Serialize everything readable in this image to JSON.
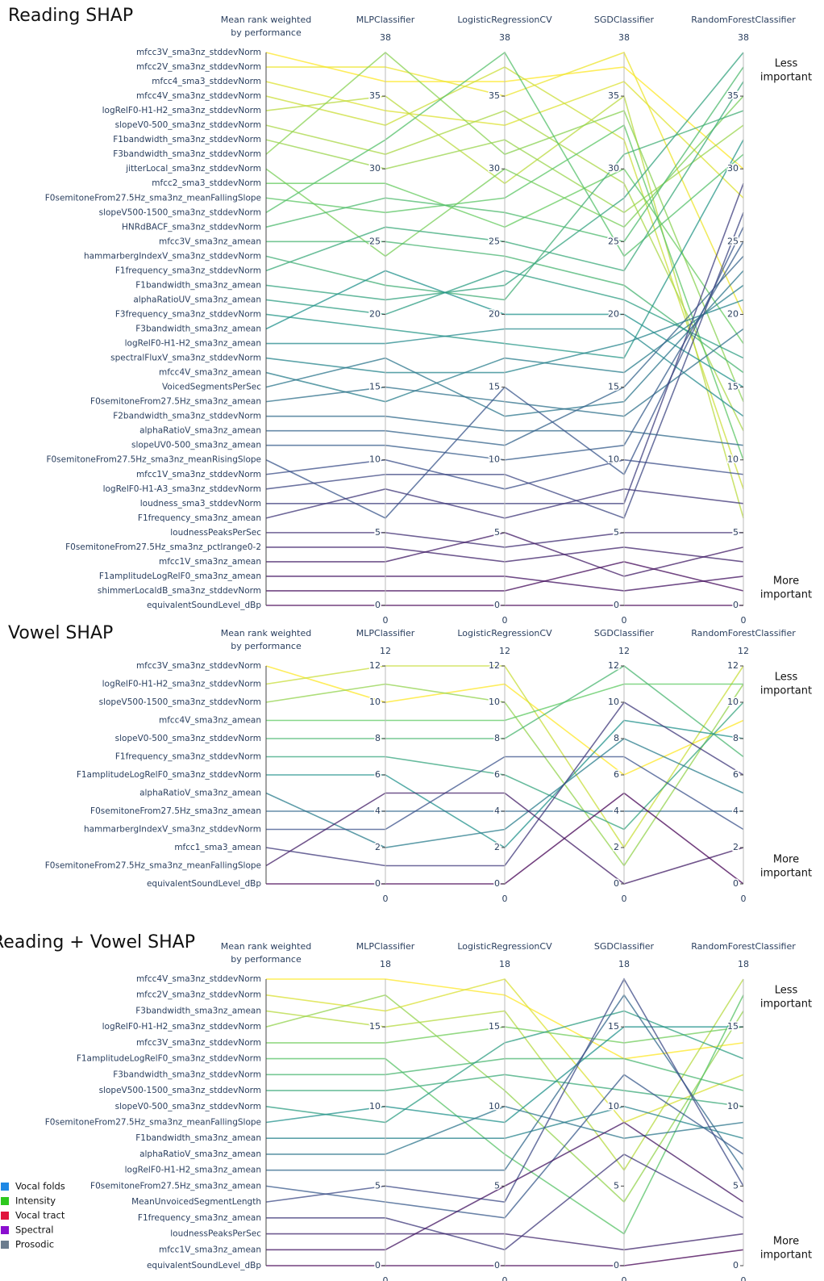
{
  "chart_data": [
    {
      "type": "parallel",
      "title": "Reading SHAP",
      "axis_title": [
        "Mean rank weighted",
        "by performance"
      ],
      "ylim": [
        0,
        38
      ],
      "yticks": [
        0,
        5,
        10,
        15,
        20,
        25,
        30,
        35
      ],
      "annotations": {
        "top": [
          "Less",
          "important"
        ],
        "bottom": [
          "More",
          "important"
        ]
      },
      "features": [
        "mfcc3V_sma3nz_stddevNorm",
        "mfcc2V_sma3nz_stddevNorm",
        "mfcc4_sma3_stddevNorm",
        "mfcc4V_sma3nz_stddevNorm",
        "logRelF0-H1-H2_sma3nz_stddevNorm",
        "slopeV0-500_sma3nz_stddevNorm",
        "F1bandwidth_sma3nz_stddevNorm",
        "F3bandwidth_sma3nz_stddevNorm",
        "jitterLocal_sma3nz_stddevNorm",
        "mfcc2_sma3_stddevNorm",
        "F0semitoneFrom27.5Hz_sma3nz_meanFallingSlope",
        "slopeV500-1500_sma3nz_stddevNorm",
        "HNRdBACF_sma3nz_stddevNorm",
        "mfcc3V_sma3nz_amean",
        "hammarbergIndexV_sma3nz_stddevNorm",
        "F1frequency_sma3nz_stddevNorm",
        "F1bandwidth_sma3nz_amean",
        "alphaRatioUV_sma3nz_amean",
        "F3frequency_sma3nz_stddevNorm",
        "F3bandwidth_sma3nz_amean",
        "logRelF0-H1-H2_sma3nz_amean",
        "spectralFluxV_sma3nz_stddevNorm",
        "mfcc4V_sma3nz_amean",
        "VoicedSegmentsPerSec",
        "F0semitoneFrom27.5Hz_sma3nz_amean",
        "F2bandwidth_sma3nz_stddevNorm",
        "alphaRatioV_sma3nz_amean",
        "slopeUV0-500_sma3nz_amean",
        "F0semitoneFrom27.5Hz_sma3nz_meanRisingSlope",
        "mfcc1V_sma3nz_stddevNorm",
        "logRelF0-H1-A3_sma3nz_stddevNorm",
        "loudness_sma3_stddevNorm",
        "F1frequency_sma3nz_amean",
        "loudnessPeaksPerSec",
        "F0semitoneFrom27.5Hz_sma3nz_pctlrange0-2",
        "mfcc1V_sma3nz_amean",
        "F1amplitudeLogRelF0_sma3nz_amean",
        "shimmerLocaldB_sma3nz_stddevNorm",
        "equivalentSoundLevel_dBp"
      ],
      "groups": [
        3,
        3,
        3,
        3,
        3,
        3,
        2,
        2,
        0,
        3,
        0,
        3,
        1,
        3,
        3,
        2,
        2,
        3,
        2,
        2,
        3,
        3,
        3,
        4,
        0,
        2,
        3,
        3,
        0,
        3,
        3,
        1,
        2,
        4,
        0,
        3,
        2,
        0,
        1
      ],
      "classifiers": [
        {
          "name": "MLPClassifier",
          "values": [
            36,
            37,
            34,
            33,
            35,
            31,
            30,
            38,
            24,
            29,
            27,
            32,
            28,
            25,
            22,
            26,
            21,
            20,
            19,
            23,
            18,
            16,
            14,
            17,
            15,
            13,
            12,
            11,
            6,
            10,
            9,
            7,
            8,
            5,
            4,
            3,
            2,
            1,
            0
          ]
        },
        {
          "name": "LogisticRegressionCV",
          "values": [
            36,
            35,
            33,
            37,
            29,
            34,
            32,
            31,
            30,
            26,
            28,
            38,
            27,
            24,
            21,
            25,
            22,
            23,
            18,
            20,
            19,
            16,
            17,
            13,
            14,
            12,
            11,
            10,
            15,
            8,
            9,
            7,
            6,
            4,
            3,
            5,
            2,
            1,
            0
          ]
        },
        {
          "name": "SGDClassifier",
          "values": [
            37,
            38,
            36,
            32,
            35,
            29,
            27,
            34,
            26,
            30,
            33,
            24,
            25,
            22,
            31,
            23,
            28,
            21,
            17,
            20,
            19,
            18,
            16,
            14,
            13,
            12,
            15,
            11,
            9,
            10,
            6,
            7,
            8,
            5,
            4,
            2,
            1,
            3,
            0
          ]
        },
        {
          "name": "RandomForestClassifier",
          "values": [
            30,
            20,
            28,
            8,
            6,
            12,
            33,
            14,
            35,
            18,
            10,
            31,
            37,
            16,
            34,
            36,
            38,
            17,
            32,
            15,
            13,
            21,
            22,
            23,
            19,
            11,
            24,
            25,
            26,
            9,
            27,
            29,
            7,
            5,
            3,
            4,
            2,
            1,
            0
          ]
        }
      ]
    },
    {
      "type": "parallel",
      "title": "Vowel SHAP",
      "axis_title": [
        "Mean rank weighted",
        "by performance"
      ],
      "ylim": [
        0,
        12
      ],
      "yticks": [
        0,
        2,
        4,
        6,
        8,
        10,
        12
      ],
      "annotations": {
        "top": [
          "Less",
          "important"
        ],
        "bottom": [
          "More",
          "important"
        ]
      },
      "features": [
        "mfcc3V_sma3nz_stddevNorm",
        "logRelF0-H1-H2_sma3nz_stddevNorm",
        "slopeV500-1500_sma3nz_stddevNorm",
        "mfcc4V_sma3nz_amean",
        "slopeV0-500_sma3nz_stddevNorm",
        "F1frequency_sma3nz_stddevNorm",
        "F1amplitudeLogRelF0_sma3nz_stddevNorm",
        "alphaRatioV_sma3nz_amean",
        "F0semitoneFrom27.5Hz_sma3nz_amean",
        "hammarbergIndexV_sma3nz_stddevNorm",
        "mfcc1_sma3_amean",
        "F0semitoneFrom27.5Hz_sma3nz_meanFallingSlope",
        "equivalentSoundLevel_dBp"
      ],
      "groups": [
        3,
        3,
        3,
        3,
        3,
        2,
        2,
        3,
        0,
        3,
        3,
        0,
        1
      ],
      "classifiers": [
        {
          "name": "MLPClassifier",
          "values": [
            10,
            12,
            11,
            9,
            8,
            7,
            6,
            2,
            4,
            3,
            1,
            5,
            0
          ]
        },
        {
          "name": "LogisticRegressionCV",
          "values": [
            11,
            12,
            10,
            9,
            8,
            6,
            2,
            3,
            4,
            7,
            1,
            5,
            0
          ]
        },
        {
          "name": "SGDClassifier",
          "values": [
            6,
            2,
            1,
            11,
            12,
            3,
            9,
            8,
            4,
            7,
            10,
            0,
            5
          ]
        },
        {
          "name": "RandomForestClassifier",
          "values": [
            9,
            12,
            11,
            11,
            7,
            10,
            8,
            5,
            4,
            3,
            6,
            2,
            0
          ]
        }
      ]
    },
    {
      "type": "parallel",
      "title": "Reading + Vowel SHAP",
      "axis_title": [
        "Mean rank weighted",
        "by performance"
      ],
      "ylim": [
        0,
        18
      ],
      "yticks": [
        0,
        5,
        10,
        15
      ],
      "annotations": {
        "top": [
          "Less",
          "important"
        ],
        "bottom": [
          "More",
          "important"
        ]
      },
      "features": [
        "mfcc4V_sma3nz_stddevNorm",
        "mfcc2V_sma3nz_stddevNorm",
        "F3bandwidth_sma3nz_amean",
        "logRelF0-H1-H2_sma3nz_stddevNorm",
        "mfcc3V_sma3nz_stddevNorm",
        "F1amplitudeLogRelF0_sma3nz_stddevNorm",
        "F3bandwidth_sma3nz_stddevNorm",
        "slopeV500-1500_sma3nz_stddevNorm",
        "slopeV0-500_sma3nz_stddevNorm",
        "F0semitoneFrom27.5Hz_sma3nz_meanFallingSlope",
        "F1bandwidth_sma3nz_amean",
        "alphaRatioV_sma3nz_amean",
        "logRelF0-H1-H2_sma3nz_amean",
        "F0semitoneFrom27.5Hz_sma3nz_amean",
        "MeanUnvoicedSegmentLength",
        "F1frequency_sma3nz_amean",
        "loudnessPeaksPerSec",
        "mfcc1V_sma3nz_amean",
        "equivalentSoundLevel_dBp"
      ],
      "groups": [
        3,
        3,
        2,
        3,
        3,
        2,
        2,
        3,
        3,
        0,
        2,
        3,
        3,
        0,
        4,
        2,
        4,
        3,
        1
      ],
      "classifiers": [
        {
          "name": "MLPClassifier",
          "values": [
            18,
            16,
            15,
            17,
            14,
            13,
            12,
            11,
            9,
            10,
            8,
            7,
            6,
            4,
            5,
            3,
            2,
            1,
            0
          ]
        },
        {
          "name": "LogisticRegressionCV",
          "values": [
            17,
            18,
            16,
            11,
            15,
            7,
            13,
            12,
            14,
            9,
            8,
            10,
            6,
            3,
            4,
            1,
            2,
            5,
            0
          ]
        },
        {
          "name": "SGDClassifier",
          "values": [
            13,
            9,
            6,
            4,
            14,
            2,
            13,
            11,
            16,
            15,
            10,
            8,
            17,
            12,
            18,
            7,
            1,
            9,
            0
          ]
        },
        {
          "name": "RandomForestClassifier",
          "values": [
            14,
            12,
            18,
            16,
            15,
            17,
            11,
            10,
            13,
            15,
            8,
            9,
            6,
            7,
            5,
            3,
            2,
            4,
            1
          ]
        }
      ]
    }
  ],
  "legend": [
    {
      "name": "Vocal folds",
      "color": "#1e88e5"
    },
    {
      "name": "Intensity",
      "color": "#2ec81f"
    },
    {
      "name": "Vocal tract",
      "color": "#e0143c"
    },
    {
      "name": "Spectral",
      "color": "#8a0fcf"
    },
    {
      "name": "Prosodic",
      "color": "#6b7c8e"
    }
  ],
  "colorscale": [
    "#440154",
    "#3b528b",
    "#21918c",
    "#5ec962",
    "#fde725"
  ]
}
